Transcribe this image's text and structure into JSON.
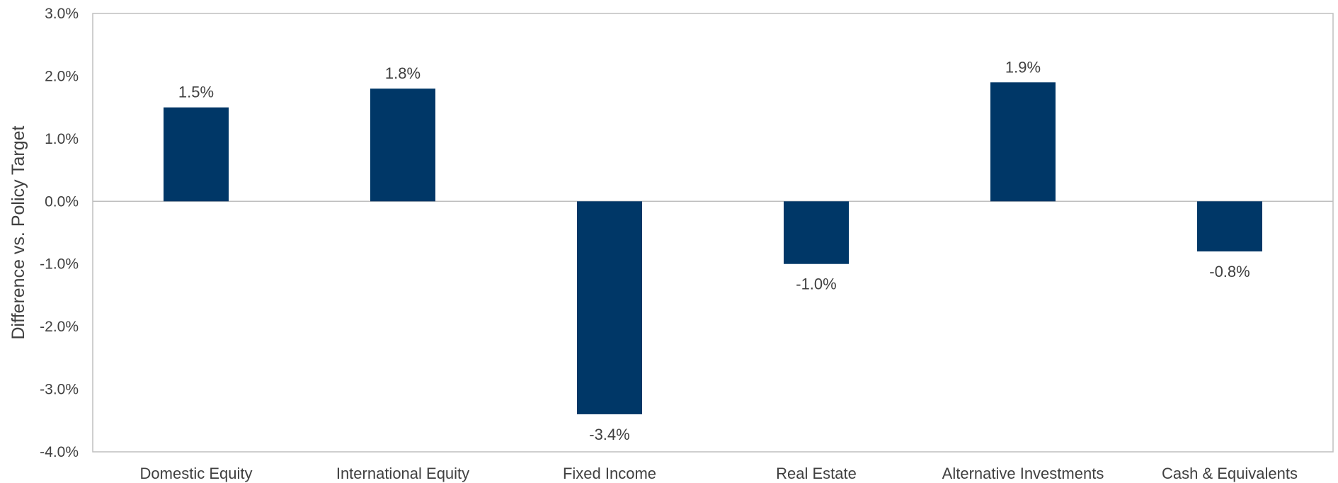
{
  "chart_data": {
    "type": "bar",
    "categories": [
      "Domestic Equity",
      "International Equity",
      "Fixed Income",
      "Real Estate",
      "Alternative Investments",
      "Cash & Equivalents"
    ],
    "values": [
      1.5,
      1.8,
      -3.4,
      -1.0,
      1.9,
      -0.8
    ],
    "data_labels": [
      "1.5%",
      "1.8%",
      "-3.4%",
      "-1.0%",
      "1.9%",
      "-0.8%"
    ],
    "title": "",
    "xlabel": "",
    "ylabel": "Difference vs. Policy Target",
    "ylim": [
      -4.0,
      3.0
    ],
    "yticks": [
      3.0,
      2.0,
      1.0,
      0.0,
      -1.0,
      -2.0,
      -3.0,
      -4.0
    ],
    "ytick_labels": [
      "3.0%",
      "2.0%",
      "1.0%",
      "0.0%",
      "-1.0%",
      "-2.0%",
      "-3.0%",
      "-4.0%"
    ],
    "grid": false,
    "legend": "none",
    "bar_color": "#003767",
    "zero_line_color": "#bfbfbf",
    "frame_color": "#bfbfbf"
  }
}
